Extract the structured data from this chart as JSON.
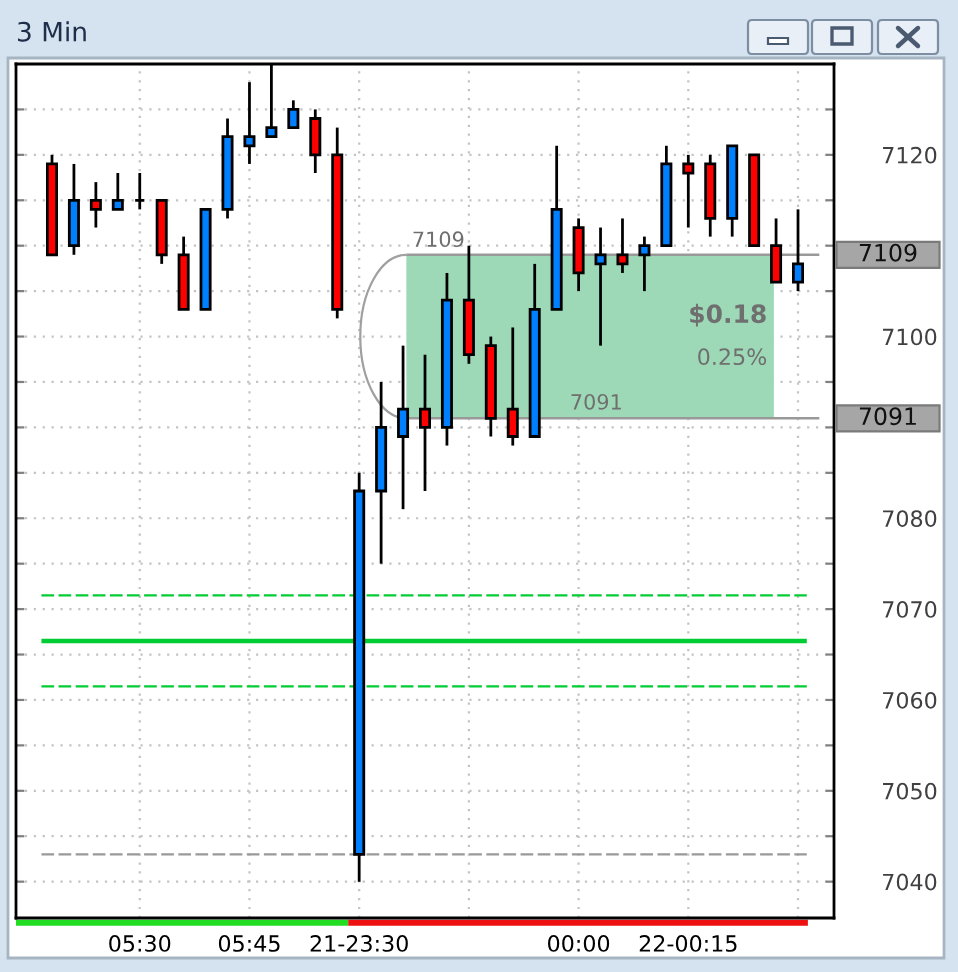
{
  "chart_data": {
    "type": "candlestick",
    "title": "3 Min",
    "categories": [
      null,
      null,
      null,
      null,
      "05:30",
      null,
      null,
      null,
      null,
      "05:45",
      null,
      null,
      null,
      null,
      "21-23:30",
      null,
      null,
      null,
      null,
      null,
      null,
      null,
      null,
      null,
      "00:00",
      null,
      null,
      null,
      null,
      "22-00:15",
      null,
      null,
      null,
      null,
      null
    ],
    "ohlc": [
      [
        7119,
        7120,
        7109,
        7109
      ],
      [
        7110,
        7119,
        7109,
        7115
      ],
      [
        7115,
        7117,
        7112,
        7114
      ],
      [
        7114,
        7118,
        7114,
        7115
      ],
      [
        7115,
        7118,
        7114,
        7115
      ],
      [
        7115,
        7115,
        7108,
        7109
      ],
      [
        7109,
        7111,
        7103,
        7103
      ],
      [
        7103,
        7114,
        7103,
        7114
      ],
      [
        7114,
        7124,
        7113,
        7122
      ],
      [
        7121,
        7128,
        7119,
        7122
      ],
      [
        7122,
        7130,
        7122,
        7123
      ],
      [
        7123,
        7126,
        7123,
        7125
      ],
      [
        7124,
        7125,
        7118,
        7120
      ],
      [
        7120,
        7123,
        7102,
        7103
      ],
      [
        7043,
        7085,
        7040,
        7083
      ],
      [
        7083,
        7095,
        7075,
        7090
      ],
      [
        7089,
        7099,
        7081,
        7092
      ],
      [
        7092,
        7098,
        7083,
        7090
      ],
      [
        7090,
        7107,
        7088,
        7104
      ],
      [
        7104,
        7110,
        7097,
        7098
      ],
      [
        7099,
        7100,
        7089,
        7091
      ],
      [
        7092,
        7101,
        7088,
        7089
      ],
      [
        7089,
        7108,
        7089,
        7103
      ],
      [
        7103,
        7121,
        7103,
        7114
      ],
      [
        7112,
        7113,
        7105,
        7107
      ],
      [
        7108,
        7112,
        7099,
        7109
      ],
      [
        7109,
        7113,
        7107,
        7108
      ],
      [
        7109,
        7111,
        7105,
        7110
      ],
      [
        7110,
        7121,
        7110,
        7119
      ],
      [
        7119,
        7120,
        7112,
        7118
      ],
      [
        7119,
        7120,
        7111,
        7113
      ],
      [
        7113,
        7121,
        7111,
        7121
      ],
      [
        7120,
        7120,
        7110,
        7110
      ],
      [
        7110,
        7113,
        7106,
        7106
      ],
      [
        7106,
        7114,
        7105,
        7108
      ]
    ],
    "colors": [
      "#ff0000",
      "#0080ff",
      "#ff0000",
      "#0080ff",
      "#000000",
      "#ff0000",
      "#ff0000",
      "#0080ff",
      "#0080ff",
      "#0080ff",
      "#0080ff",
      "#0080ff",
      "#ff0000",
      "#ff0000",
      "#0080ff",
      "#0080ff",
      "#0080ff",
      "#ff0000",
      "#0080ff",
      "#ff0000",
      "#ff0000",
      "#ff0000",
      "#0080ff",
      "#0080ff",
      "#ff0000",
      "#0080ff",
      "#ff0000",
      "#0080ff",
      "#0080ff",
      "#ff0000",
      "#ff0000",
      "#0080ff",
      "#ff0000",
      "#ff0000",
      "#0080ff"
    ],
    "ylim": [
      7036,
      7130
    ],
    "yticks": [
      7040,
      {
        "value": 7045,
        "label": null
      },
      7050,
      {
        "value": 7055,
        "label": null
      },
      7060,
      {
        "value": 7065,
        "label": null
      },
      7070,
      {
        "value": 7075,
        "label": null
      },
      7080,
      {
        "value": 7085,
        "label": null
      },
      {
        "value": 7090,
        "label": null
      },
      {
        "value": 7095,
        "label": null
      },
      7100,
      {
        "value": 7105,
        "label": null
      },
      {
        "value": 7110,
        "label": null
      },
      {
        "value": 7115,
        "label": null
      },
      7120,
      {
        "value": 7125,
        "label": null
      }
    ],
    "grid": true,
    "ref_lines": [
      {
        "axis": "y",
        "value": 7071.5,
        "color": "#00cc33",
        "line_style": "dashed"
      },
      {
        "axis": "y",
        "value": 7066.5,
        "color": "#00cc33",
        "line_style": "solid"
      },
      {
        "axis": "y",
        "value": 7061.5,
        "color": "#00cc33",
        "line_style": "dashed"
      },
      {
        "axis": "y",
        "value": 7043,
        "color": "#999999",
        "line_style": "dashed"
      },
      {
        "axis": "y",
        "value": 7109,
        "label": "7109",
        "color": "#999999",
        "line_style": "solid"
      },
      {
        "axis": "y",
        "value": 7091,
        "label": "7091",
        "color": "#999999",
        "line_style": "solid"
      }
    ],
    "bands": [
      {
        "axis": "y",
        "from": 7091,
        "to": 7109,
        "color": "#9dd9b7"
      }
    ],
    "annotations": [
      {
        "text": "7109",
        "y": 7109
      },
      {
        "text": "7091",
        "y": 7091
      },
      "$0.18",
      "0.25%"
    ]
  }
}
